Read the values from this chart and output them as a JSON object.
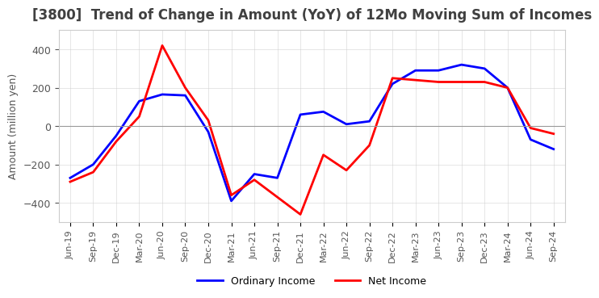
{
  "title": "[3800]  Trend of Change in Amount (YoY) of 12Mo Moving Sum of Incomes",
  "ylabel": "Amount (million yen)",
  "ylim": [
    -500,
    500
  ],
  "yticks": [
    -400,
    -200,
    0,
    200,
    400
  ],
  "x_labels": [
    "Jun-19",
    "Sep-19",
    "Dec-19",
    "Mar-20",
    "Jun-20",
    "Sep-20",
    "Dec-20",
    "Mar-21",
    "Jun-21",
    "Sep-21",
    "Dec-21",
    "Mar-22",
    "Jun-22",
    "Sep-22",
    "Dec-22",
    "Mar-23",
    "Jun-23",
    "Sep-23",
    "Dec-23",
    "Mar-24",
    "Jun-24",
    "Sep-24"
  ],
  "ordinary_income": [
    -270,
    -200,
    -50,
    130,
    165,
    160,
    -30,
    -390,
    -250,
    -270,
    60,
    75,
    10,
    25,
    220,
    290,
    290,
    320,
    300,
    200,
    -70,
    -120
  ],
  "net_income": [
    -290,
    -240,
    -80,
    50,
    420,
    200,
    30,
    -360,
    -280,
    -370,
    -460,
    -150,
    -230,
    -100,
    250,
    240,
    230,
    230,
    230,
    200,
    -10,
    -40
  ],
  "ordinary_color": "#0000FF",
  "net_color": "#FF0000",
  "background_color": "#FFFFFF",
  "grid_color": "#CCCCCC",
  "title_color": "#404040",
  "legend_labels": [
    "Ordinary Income",
    "Net Income"
  ]
}
